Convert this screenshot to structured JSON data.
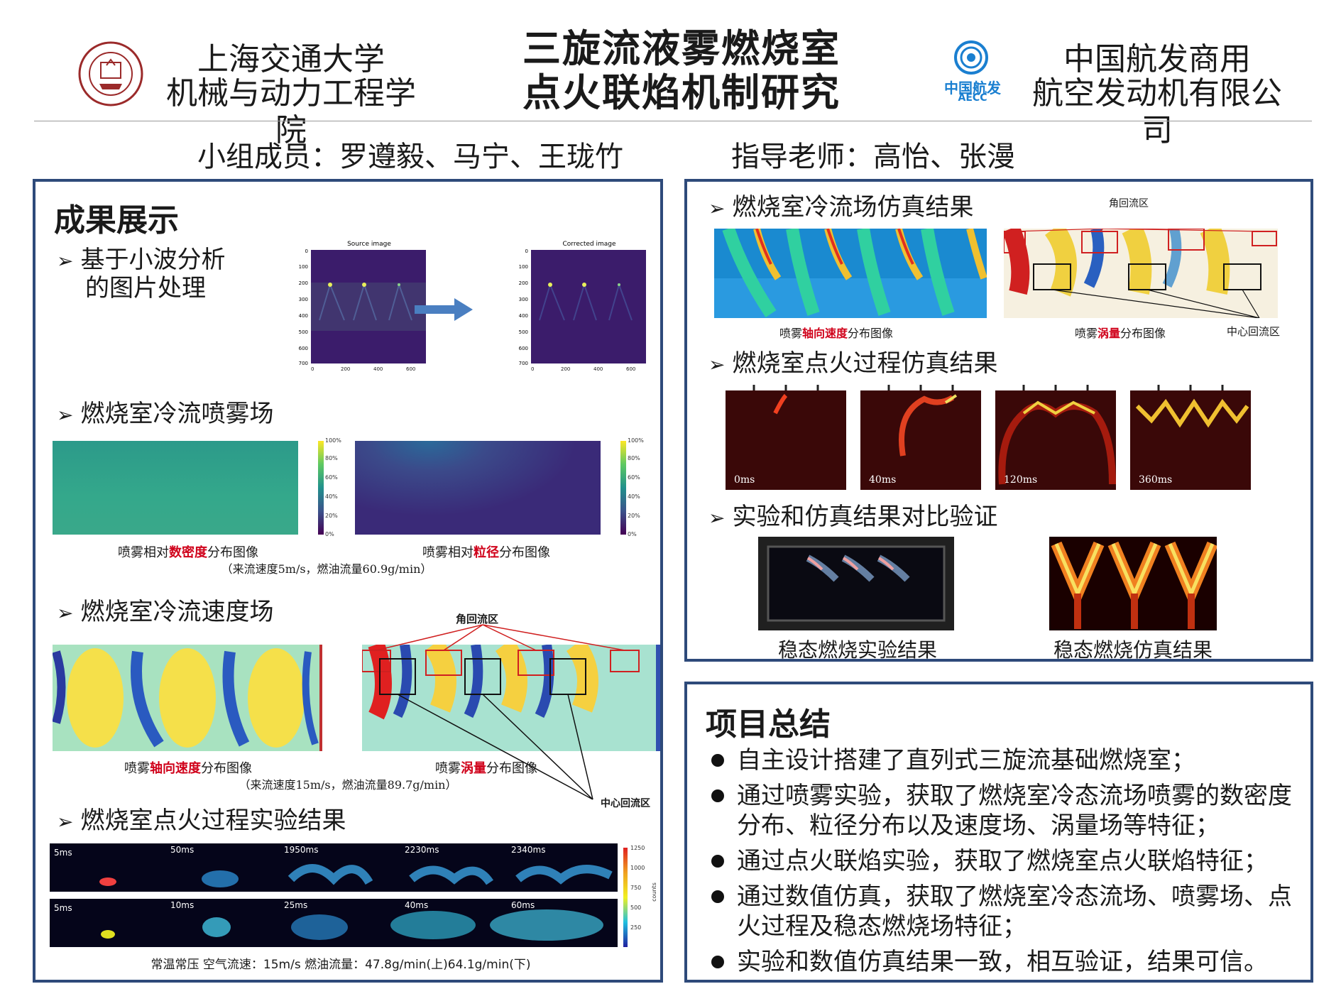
{
  "header": {
    "left_org_line1": "上海交通大学",
    "left_org_line2": "机械与动力工程学院",
    "title_line1": "三旋流液雾燃烧室",
    "title_line2": "点火联焰机制研究",
    "right_logo_text": "中国航发",
    "right_logo_sub": "AECC",
    "right_org_line1": "中国航发商用",
    "right_org_line2": "航空发动机有限公司",
    "members": "小组成员：罗遵毅、马宁、王珑竹",
    "advisors": "指导老师：高怡、张漫"
  },
  "results": {
    "heading": "成果展示",
    "wavelet": {
      "label_line1": "基于小波分析",
      "label_line2": "的图片处理",
      "source_title": "Source image",
      "corrected_title": "Corrected image",
      "y_ticks": [
        "0",
        "100",
        "200",
        "300",
        "400",
        "500",
        "600",
        "700"
      ],
      "x_ticks": [
        "0",
        "200",
        "400",
        "600"
      ]
    },
    "spray": {
      "label": "燃烧室冷流喷雾场",
      "cbar_ticks": [
        "100%",
        "80%",
        "60%",
        "40%",
        "20%",
        "0%"
      ],
      "caption1_pre": "喷雾相对",
      "caption1_hl": "数密度",
      "caption1_post": "分布图像",
      "caption2_pre": "喷雾相对",
      "caption2_hl": "粒径",
      "caption2_post": "分布图像",
      "condition": "（来流速度5m/s，燃油流量60.9g/min）"
    },
    "velocity": {
      "label": "燃烧室冷流速度场",
      "corner_label": "角回流区",
      "center_label": "中心回流区",
      "caption1_pre": "喷雾",
      "caption1_hl": "轴向速度",
      "caption1_post": "分布图像",
      "caption2_pre": "喷雾",
      "caption2_hl": "涡量",
      "caption2_post": "分布图像",
      "condition": "（来流速度15m/s，燃油流量89.7g/min）"
    },
    "ignition": {
      "label": "燃烧室点火过程实验结果",
      "top_times": [
        "5ms",
        "50ms",
        "1950ms",
        "2230ms",
        "2340ms"
      ],
      "bottom_times": [
        "5ms",
        "10ms",
        "25ms",
        "40ms",
        "60ms"
      ],
      "cbar_ticks": [
        "1250",
        "1000",
        "750",
        "500",
        "250"
      ],
      "cbar_label": "counts",
      "caption": "常温常压  空气流速：15m/s  燃油流量：47.8g/min(上)64.1g/min(下)"
    }
  },
  "sim": {
    "cold_flow_label": "燃烧室冷流场仿真结果",
    "corner_label": "角回流区",
    "center_label": "中心回流区",
    "caption1_pre": "喷雾",
    "caption1_hl": "轴向速度",
    "caption1_post": "分布图像",
    "caption2_pre": "喷雾",
    "caption2_hl": "涡量",
    "caption2_post": "分布图像",
    "ignition_label": "燃烧室点火过程仿真结果",
    "ignition_times": [
      "0ms",
      "40ms",
      "120ms",
      "360ms"
    ],
    "compare_label": "实验和仿真结果对比验证",
    "exp_caption": "稳态燃烧实验结果",
    "sim_caption": "稳态燃烧仿真结果"
  },
  "summary": {
    "heading": "项目总结",
    "items": [
      "自主设计搭建了直列式三旋流基础燃烧室；",
      "通过喷雾实验，获取了燃烧室冷态流场喷雾的数密度",
      "分布、粒径分布以及速度场、涡量场等特征；",
      "通过点火联焰实验，获取了燃烧室点火联焰特征；",
      "通过数值仿真，获取了燃烧室冷态流场、喷雾场、点",
      "火过程及稳态燃烧场特征；",
      "实验和数值仿真结果一致，相互验证，结果可信。"
    ]
  },
  "colors": {
    "border": "#2e4a7a",
    "highlight": "#d0021b",
    "arrow": "#4a7fc1"
  }
}
